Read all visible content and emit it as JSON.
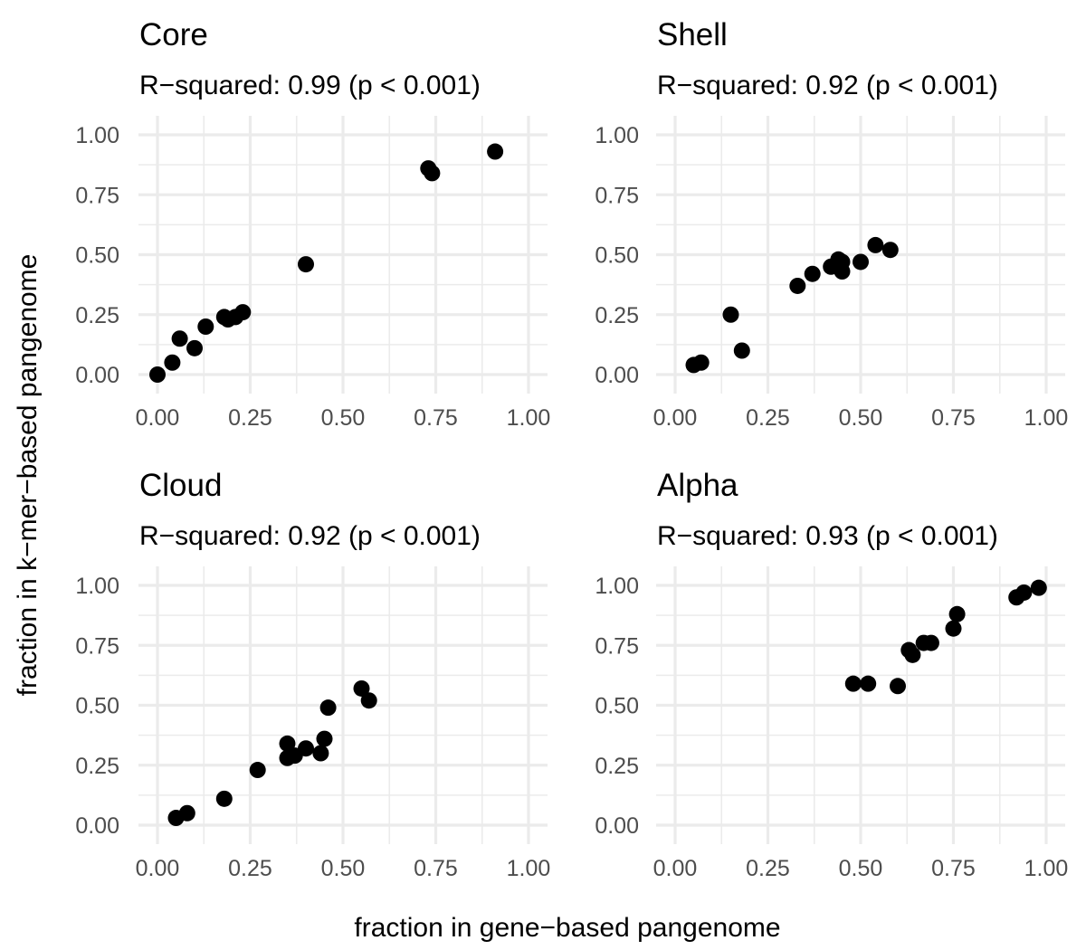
{
  "xlabel": "fraction in gene−based pangenome",
  "ylabel": "fraction in k−mer−based pangenome",
  "chart_data": [
    {
      "type": "scatter",
      "title": "Core",
      "subtitle": "R−squared:  0.99 (p < 0.001)",
      "xlim": [
        0,
        1
      ],
      "ylim": [
        0,
        1
      ],
      "xticks": [
        "0.00",
        "0.25",
        "0.50",
        "0.75",
        "1.00"
      ],
      "yticks": [
        "0.00",
        "0.25",
        "0.50",
        "0.75",
        "1.00"
      ],
      "grid": true,
      "x": [
        0.0,
        0.04,
        0.06,
        0.1,
        0.13,
        0.18,
        0.19,
        0.21,
        0.23,
        0.4,
        0.73,
        0.74,
        0.91
      ],
      "y": [
        0.0,
        0.05,
        0.15,
        0.11,
        0.2,
        0.24,
        0.23,
        0.24,
        0.26,
        0.46,
        0.86,
        0.84,
        0.93
      ]
    },
    {
      "type": "scatter",
      "title": "Shell",
      "subtitle": "R−squared:  0.92 (p < 0.001)",
      "xlim": [
        0,
        1
      ],
      "ylim": [
        0,
        1
      ],
      "xticks": [
        "0.00",
        "0.25",
        "0.50",
        "0.75",
        "1.00"
      ],
      "yticks": [
        "0.00",
        "0.25",
        "0.50",
        "0.75",
        "1.00"
      ],
      "grid": true,
      "x": [
        0.05,
        0.07,
        0.15,
        0.18,
        0.33,
        0.37,
        0.42,
        0.44,
        0.45,
        0.45,
        0.5,
        0.54,
        0.58
      ],
      "y": [
        0.04,
        0.05,
        0.25,
        0.1,
        0.37,
        0.42,
        0.45,
        0.48,
        0.43,
        0.47,
        0.47,
        0.54,
        0.52
      ]
    },
    {
      "type": "scatter",
      "title": "Cloud",
      "subtitle": "R−squared:  0.92 (p < 0.001)",
      "xlim": [
        0,
        1
      ],
      "ylim": [
        0,
        1
      ],
      "xticks": [
        "0.00",
        "0.25",
        "0.50",
        "0.75",
        "1.00"
      ],
      "yticks": [
        "0.00",
        "0.25",
        "0.50",
        "0.75",
        "1.00"
      ],
      "grid": true,
      "x": [
        0.05,
        0.08,
        0.18,
        0.27,
        0.35,
        0.35,
        0.37,
        0.4,
        0.44,
        0.45,
        0.46,
        0.55,
        0.57
      ],
      "y": [
        0.03,
        0.05,
        0.11,
        0.23,
        0.28,
        0.34,
        0.29,
        0.32,
        0.3,
        0.36,
        0.49,
        0.57,
        0.52
      ]
    },
    {
      "type": "scatter",
      "title": "Alpha",
      "subtitle": "R−squared:  0.93 (p < 0.001)",
      "xlim": [
        0,
        1
      ],
      "ylim": [
        0,
        1
      ],
      "xticks": [
        "0.00",
        "0.25",
        "0.50",
        "0.75",
        "1.00"
      ],
      "yticks": [
        "0.00",
        "0.25",
        "0.50",
        "0.75",
        "1.00"
      ],
      "grid": true,
      "x": [
        0.48,
        0.52,
        0.6,
        0.63,
        0.64,
        0.67,
        0.69,
        0.75,
        0.76,
        0.92,
        0.94,
        0.98
      ],
      "y": [
        0.59,
        0.59,
        0.58,
        0.73,
        0.71,
        0.76,
        0.76,
        0.82,
        0.88,
        0.95,
        0.97,
        0.99
      ]
    }
  ]
}
